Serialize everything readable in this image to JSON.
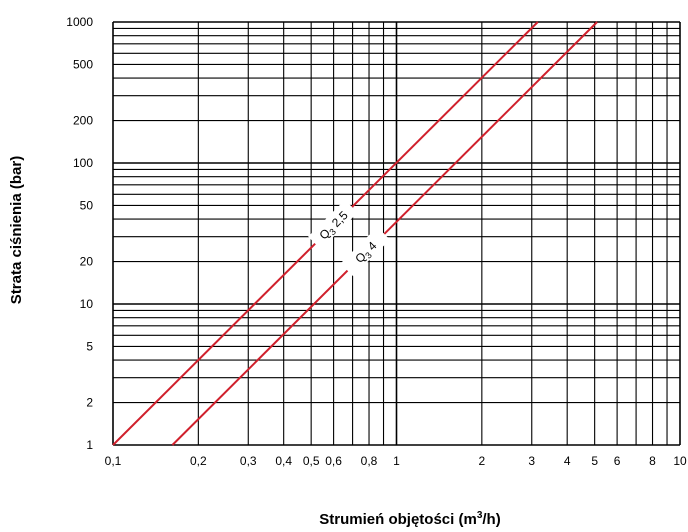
{
  "chart_data": {
    "type": "line",
    "xlabel": "Strumień objętości (m³/h)",
    "ylabel": "Strata ciśnienia (bar)",
    "x_scale": "log",
    "y_scale": "log",
    "xlim": [
      0.1,
      10
    ],
    "ylim": [
      1,
      1000
    ],
    "grid": true,
    "x_tick_labels": [
      {
        "value": 0.1,
        "label": "0,1"
      },
      {
        "value": 0.2,
        "label": "0,2"
      },
      {
        "value": 0.3,
        "label": "0,3"
      },
      {
        "value": 0.4,
        "label": "0,4"
      },
      {
        "value": 0.5,
        "label": "0,5"
      },
      {
        "value": 0.6,
        "label": "0,6"
      },
      {
        "value": 0.8,
        "label": "0,8"
      },
      {
        "value": 1,
        "label": "1"
      },
      {
        "value": 2,
        "label": "2"
      },
      {
        "value": 3,
        "label": "3"
      },
      {
        "value": 4,
        "label": "4"
      },
      {
        "value": 5,
        "label": "5"
      },
      {
        "value": 6,
        "label": "6"
      },
      {
        "value": 8,
        "label": "8"
      },
      {
        "value": 10,
        "label": "10"
      }
    ],
    "y_tick_labels": [
      {
        "value": 1,
        "label": "1"
      },
      {
        "value": 2,
        "label": "2"
      },
      {
        "value": 5,
        "label": "5"
      },
      {
        "value": 10,
        "label": "10"
      },
      {
        "value": 20,
        "label": "20"
      },
      {
        "value": 50,
        "label": "50"
      },
      {
        "value": 100,
        "label": "100"
      },
      {
        "value": 200,
        "label": "200"
      },
      {
        "value": 500,
        "label": "500"
      },
      {
        "value": 1000,
        "label": "1000"
      }
    ],
    "series": [
      {
        "name": "Q3 2,5",
        "color": "#d0202c",
        "x": [
          0.1,
          3.15
        ],
        "y": [
          1,
          1000
        ]
      },
      {
        "name": "Q3 4",
        "color": "#d0202c",
        "x": [
          0.162,
          5.1
        ],
        "y": [
          1,
          1000
        ]
      }
    ]
  }
}
